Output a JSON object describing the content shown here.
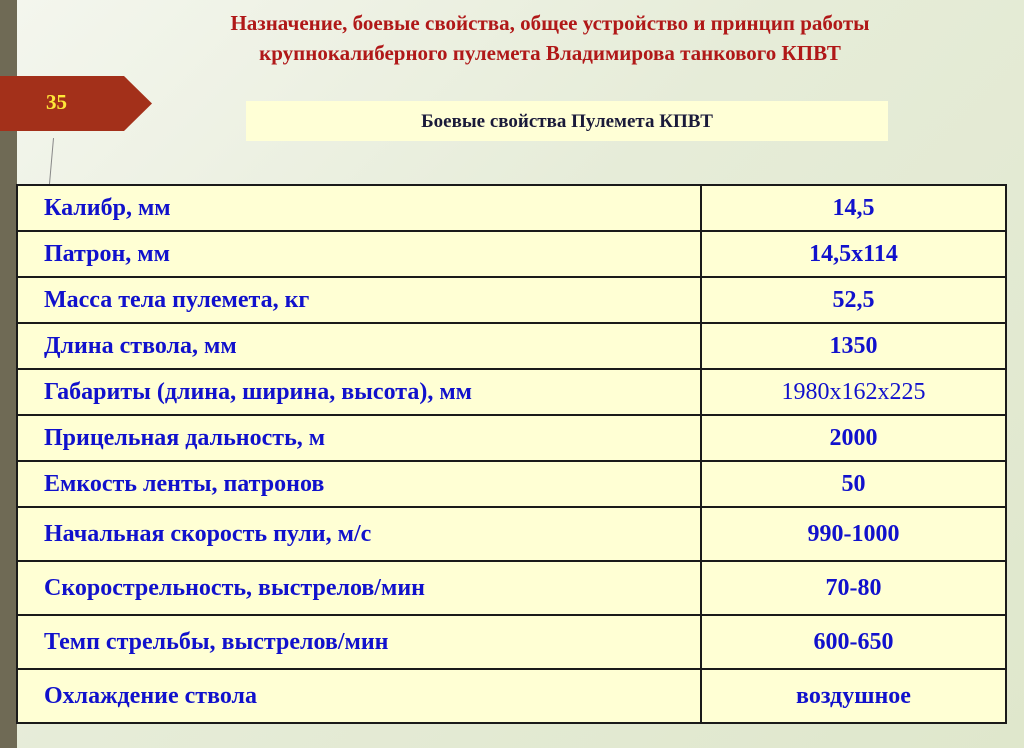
{
  "slide": {
    "title_line1": "Назначение, боевые свойства, общее устройство и принцип работы",
    "title_line2": "крупнокалиберного пулемета Владимирова танкового КПВТ",
    "number": "35",
    "subtitle": "Боевые свойства Пулемета КПВТ"
  },
  "colors": {
    "title": "#b01818",
    "badge": "#a3301a",
    "badge_text": "#ffe838",
    "table_text": "#1111cc",
    "table_bg": "#ffffd4"
  },
  "table": [
    {
      "label": "Калибр, мм",
      "value": "14,5"
    },
    {
      "label": "Патрон, мм",
      "value": "14,5х114"
    },
    {
      "label": "Масса тела пулемета, кг",
      "value": "52,5"
    },
    {
      "label": "Длина ствола, мм",
      "value": "1350"
    },
    {
      "label": "Габариты (длина, ширина, высота), мм",
      "value": "1980x162x225"
    },
    {
      "label": "Прицельная дальность, м",
      "value": "2000"
    },
    {
      "label": "Емкость ленты, патронов",
      "value": "50"
    },
    {
      "label": "Начальная скорость пули, м/с",
      "value": "990-1000"
    },
    {
      "label": "Скорострельность, выстрелов/мин",
      "value": "70-80"
    },
    {
      "label": "Темп стрельбы, выстрелов/мин",
      "value": "600-650"
    },
    {
      "label": "Охлаждение ствола",
      "value": "воздушное"
    }
  ]
}
